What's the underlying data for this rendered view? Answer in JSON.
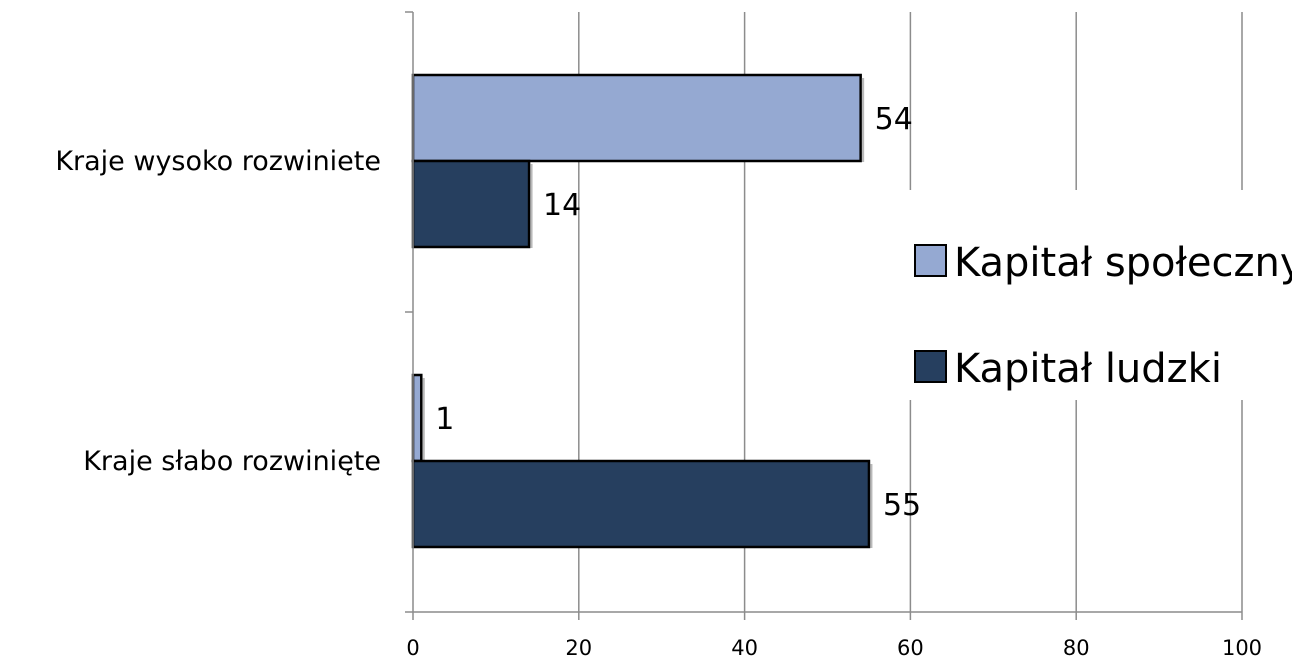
{
  "chart_data": {
    "type": "bar",
    "orientation": "horizontal",
    "categories": [
      "Kraje wysoko rozwiniete",
      "Kraje słabo rozwinięte"
    ],
    "series": [
      {
        "name": "Kapitał społeczny",
        "values": [
          54,
          1
        ],
        "color": "#95a9d2"
      },
      {
        "name": "Kapitał ludzki",
        "values": [
          14,
          55
        ],
        "color": "#263f5f"
      }
    ],
    "data_labels": [
      [
        "54",
        "1"
      ],
      [
        "14",
        "55"
      ]
    ],
    "xlim": [
      0,
      100
    ],
    "x_ticks": [
      0,
      20,
      40,
      60,
      80,
      100
    ],
    "x_tick_labels": [
      "0",
      "20",
      "40",
      "60",
      "80",
      "100"
    ],
    "grid": "vertical",
    "legend_position": "right"
  },
  "colors": {
    "grid": "#8c8c8c",
    "axis": "#8c8c8c",
    "bar_outline": "#000000"
  }
}
